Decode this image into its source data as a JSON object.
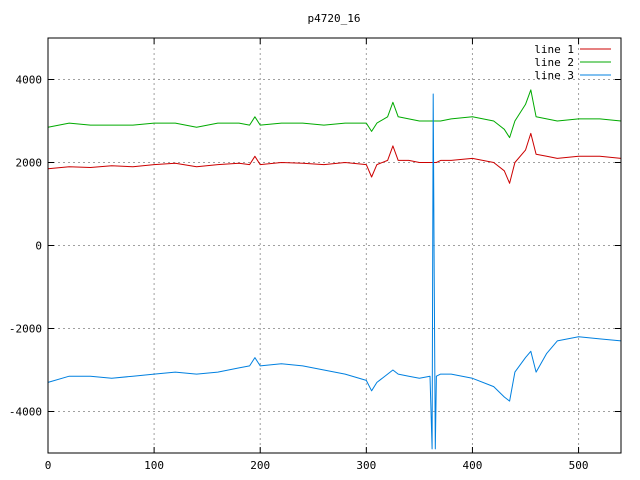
{
  "chart_data": {
    "type": "line",
    "title": "p4720_16",
    "xlabel": "",
    "ylabel": "",
    "xlim": [
      0,
      540
    ],
    "ylim": [
      -5000,
      5000
    ],
    "grid": true,
    "legend_position": "top-right",
    "x_ticks": [
      0,
      100,
      200,
      300,
      400,
      500
    ],
    "y_ticks": [
      -4000,
      -2000,
      0,
      2000,
      4000
    ],
    "x": [
      0,
      20,
      40,
      60,
      80,
      100,
      120,
      140,
      160,
      180,
      190,
      195,
      200,
      220,
      240,
      260,
      280,
      300,
      305,
      310,
      320,
      325,
      330,
      340,
      350,
      360,
      362,
      363,
      364,
      365,
      366,
      370,
      380,
      400,
      420,
      430,
      435,
      440,
      450,
      455,
      460,
      470,
      480,
      500,
      520,
      540
    ],
    "series": [
      {
        "name": "line 1",
        "color": "#cc0000",
        "values": [
          1850,
          1900,
          1880,
          1920,
          1900,
          1950,
          1980,
          1900,
          1950,
          1980,
          1950,
          2150,
          1950,
          2000,
          1980,
          1950,
          2000,
          1950,
          1650,
          1950,
          2050,
          2400,
          2050,
          2050,
          2000,
          2000,
          2000,
          2000,
          2000,
          2000,
          2000,
          2050,
          2050,
          2100,
          2000,
          1800,
          1500,
          2000,
          2300,
          2700,
          2200,
          2150,
          2100,
          2150,
          2150,
          2100
        ]
      },
      {
        "name": "line 2",
        "color": "#00aa00",
        "values": [
          2850,
          2950,
          2900,
          2900,
          2900,
          2950,
          2950,
          2850,
          2950,
          2950,
          2900,
          3100,
          2900,
          2950,
          2950,
          2900,
          2950,
          2950,
          2750,
          2950,
          3100,
          3450,
          3100,
          3050,
          3000,
          3000,
          3000,
          3000,
          3000,
          3000,
          3000,
          3000,
          3050,
          3100,
          3000,
          2800,
          2600,
          3000,
          3400,
          3750,
          3100,
          3050,
          3000,
          3050,
          3050,
          3000
        ]
      },
      {
        "name": "line 3",
        "color": "#0080e0",
        "values": [
          -3300,
          -3150,
          -3150,
          -3200,
          -3150,
          -3100,
          -3050,
          -3100,
          -3050,
          -2950,
          -2900,
          -2700,
          -2900,
          -2850,
          -2900,
          -3000,
          -3100,
          -3250,
          -3500,
          -3300,
          -3100,
          -3000,
          -3100,
          -3150,
          -3200,
          -3150,
          -4900,
          3650,
          -700,
          -4900,
          -3150,
          -3100,
          -3100,
          -3200,
          -3400,
          -3650,
          -3750,
          -3050,
          -2700,
          -2550,
          -3050,
          -2600,
          -2300,
          -2200,
          -2250,
          -2300
        ]
      }
    ]
  }
}
